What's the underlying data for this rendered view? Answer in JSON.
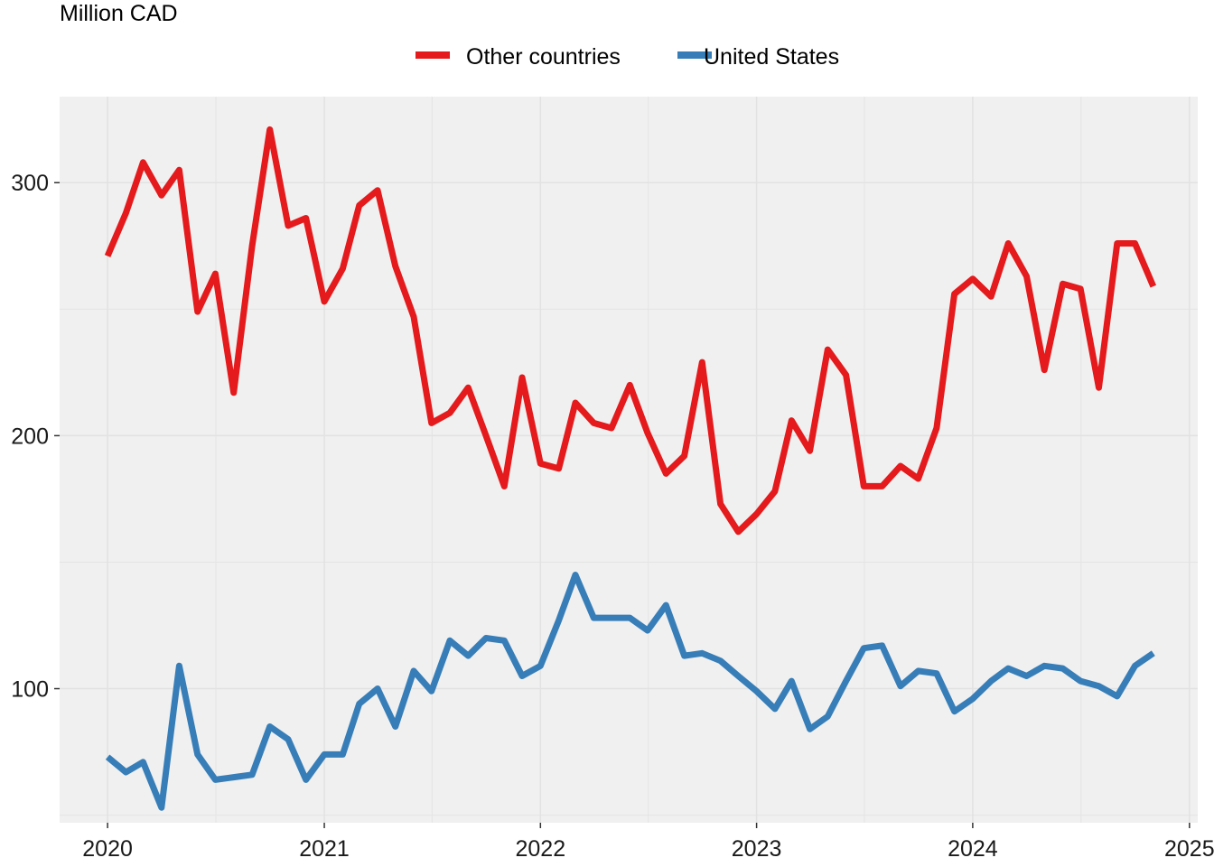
{
  "chart_data": {
    "type": "line",
    "ylabel": "Million CAD",
    "xlabel": "",
    "title": "",
    "x_axis": {
      "min": "2019-10-12",
      "max": "2025-01-15",
      "ticks": [
        "2020",
        "2021",
        "2022",
        "2023",
        "2024",
        "2025"
      ]
    },
    "y_axis": {
      "min": 47,
      "max": 334,
      "ticks": [
        100,
        200,
        300
      ],
      "minor_ticks": [
        50,
        150,
        250
      ]
    },
    "grid": true,
    "legend_position": "top",
    "x": [
      "2020-01",
      "2020-02",
      "2020-03",
      "2020-04",
      "2020-05",
      "2020-06",
      "2020-07",
      "2020-08",
      "2020-09",
      "2020-10",
      "2020-11",
      "2020-12",
      "2021-01",
      "2021-02",
      "2021-03",
      "2021-04",
      "2021-05",
      "2021-06",
      "2021-07",
      "2021-08",
      "2021-09",
      "2021-10",
      "2021-11",
      "2021-12",
      "2022-01",
      "2022-02",
      "2022-03",
      "2022-04",
      "2022-05",
      "2022-06",
      "2022-07",
      "2022-08",
      "2022-09",
      "2022-10",
      "2022-11",
      "2022-12",
      "2023-01",
      "2023-02",
      "2023-03",
      "2023-04",
      "2023-05",
      "2023-06",
      "2023-07",
      "2023-08",
      "2023-09",
      "2023-10",
      "2023-11",
      "2023-12",
      "2024-01",
      "2024-02",
      "2024-03",
      "2024-04",
      "2024-05",
      "2024-06",
      "2024-07",
      "2024-08",
      "2024-09",
      "2024-10",
      "2024-11"
    ],
    "series": [
      {
        "name": "Other countries",
        "color": "#e41a1c",
        "values": [
          271,
          288,
          308,
          295,
          305,
          249,
          264,
          217,
          275,
          321,
          283,
          286,
          253,
          266,
          291,
          297,
          267,
          247,
          205,
          209,
          219,
          200,
          180,
          223,
          189,
          187,
          213,
          205,
          203,
          220,
          201,
          185,
          192,
          229,
          173,
          162,
          169,
          178,
          206,
          194,
          234,
          224,
          180,
          180,
          188,
          183,
          203,
          256,
          262,
          255,
          276,
          263,
          226,
          260,
          258,
          219,
          276,
          276,
          259
        ]
      },
      {
        "name": "United States",
        "color": "#377eb8",
        "values": [
          73,
          67,
          71,
          53,
          109,
          74,
          64,
          65,
          66,
          85,
          80,
          64,
          74,
          74,
          94,
          100,
          85,
          107,
          99,
          119,
          113,
          120,
          119,
          105,
          109,
          127,
          145,
          128,
          128,
          128,
          123,
          133,
          113,
          114,
          111,
          105,
          99,
          92,
          103,
          84,
          89,
          103,
          116,
          117,
          101,
          107,
          106,
          91,
          96,
          103,
          108,
          105,
          109,
          108,
          103,
          101,
          97,
          109,
          114
        ]
      }
    ]
  }
}
